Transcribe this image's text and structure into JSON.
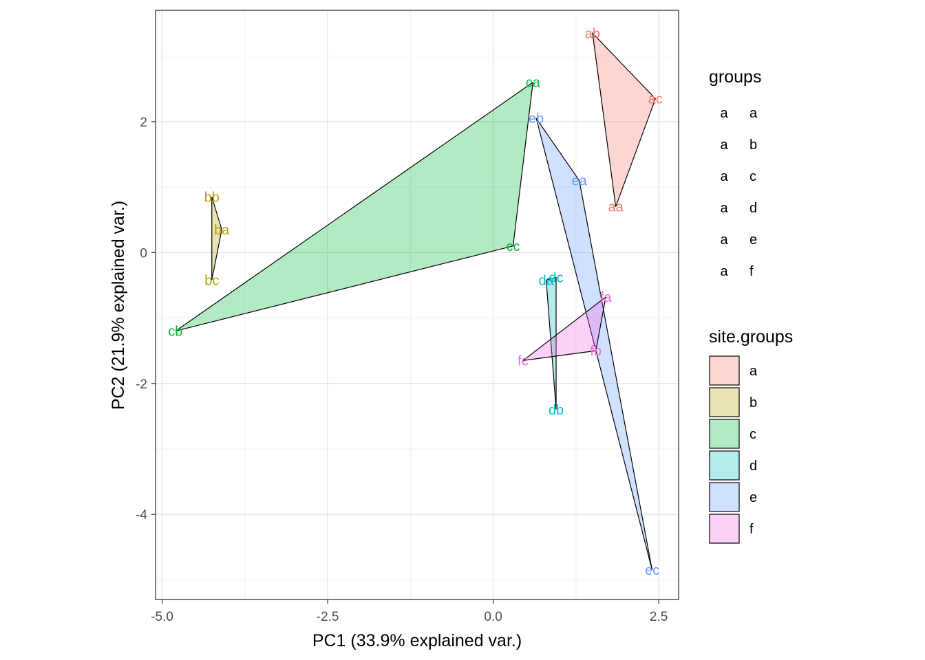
{
  "chart_data": {
    "type": "scatter",
    "xlabel": "PC1 (33.9% explained var.)",
    "ylabel": "PC2 (21.9% explained var.)",
    "xlim": [
      -5.1,
      2.8
    ],
    "ylim": [
      -5.3,
      3.7
    ],
    "x_ticks": [
      -5.0,
      -2.5,
      0.0,
      2.5
    ],
    "x_tick_labels": [
      "-5.0",
      "-2.5",
      "0.0",
      "2.5"
    ],
    "y_ticks": [
      -4,
      -2,
      0,
      2
    ],
    "y_tick_labels": [
      "-4",
      "-2",
      "0",
      "2"
    ],
    "grid": true,
    "legend_position": "right",
    "points": [
      {
        "label": "aa",
        "group": "a",
        "x": 1.85,
        "y": 0.7
      },
      {
        "label": "ab",
        "group": "a",
        "x": 1.5,
        "y": 3.35
      },
      {
        "label": "ac",
        "group": "a",
        "x": 2.45,
        "y": 2.35
      },
      {
        "label": "ba",
        "group": "b",
        "x": -4.1,
        "y": 0.35
      },
      {
        "label": "bb",
        "group": "b",
        "x": -4.25,
        "y": 0.85
      },
      {
        "label": "bc",
        "group": "b",
        "x": -4.25,
        "y": -0.42
      },
      {
        "label": "ca",
        "group": "c",
        "x": 0.6,
        "y": 2.6
      },
      {
        "label": "cb",
        "group": "c",
        "x": -4.8,
        "y": -1.2
      },
      {
        "label": "cc",
        "group": "c",
        "x": 0.3,
        "y": 0.1
      },
      {
        "label": "da",
        "group": "d",
        "x": 0.8,
        "y": -0.42
      },
      {
        "label": "db",
        "group": "d",
        "x": 0.95,
        "y": -2.4
      },
      {
        "label": "dc",
        "group": "d",
        "x": 0.95,
        "y": -0.38
      },
      {
        "label": "ea",
        "group": "e",
        "x": 1.3,
        "y": 1.1
      },
      {
        "label": "eb",
        "group": "e",
        "x": 0.65,
        "y": 2.05
      },
      {
        "label": "ec",
        "group": "e",
        "x": 2.4,
        "y": -4.85
      },
      {
        "label": "fa",
        "group": "f",
        "x": 1.7,
        "y": -0.68
      },
      {
        "label": "fb",
        "group": "f",
        "x": 1.55,
        "y": -1.5
      },
      {
        "label": "fc",
        "group": "f",
        "x": 0.45,
        "y": -1.65
      }
    ],
    "hulls": [
      {
        "group": "a",
        "points": [
          "ab",
          "ac",
          "aa"
        ]
      },
      {
        "group": "b",
        "points": [
          "bb",
          "ba",
          "bc"
        ]
      },
      {
        "group": "c",
        "points": [
          "ca",
          "cc",
          "cb"
        ]
      },
      {
        "group": "d",
        "points": [
          "da",
          "dc",
          "db"
        ]
      },
      {
        "group": "e",
        "points": [
          "eb",
          "ea",
          "ec"
        ]
      },
      {
        "group": "f",
        "points": [
          "fa",
          "fb",
          "fc"
        ]
      }
    ],
    "groups": [
      "a",
      "b",
      "c",
      "d",
      "e",
      "f"
    ],
    "group_colors": {
      "a": "#F8766D",
      "b": "#B79F00",
      "c": "#00BA38",
      "d": "#00BFC4",
      "e": "#619CFF",
      "f": "#F564E3"
    },
    "legend_groups": {
      "title": "groups",
      "key_glyph": "a",
      "entries": [
        "a",
        "b",
        "c",
        "d",
        "e",
        "f"
      ]
    },
    "legend_site_groups": {
      "title": "site.groups",
      "entries": [
        "a",
        "b",
        "c",
        "d",
        "e",
        "f"
      ]
    }
  }
}
